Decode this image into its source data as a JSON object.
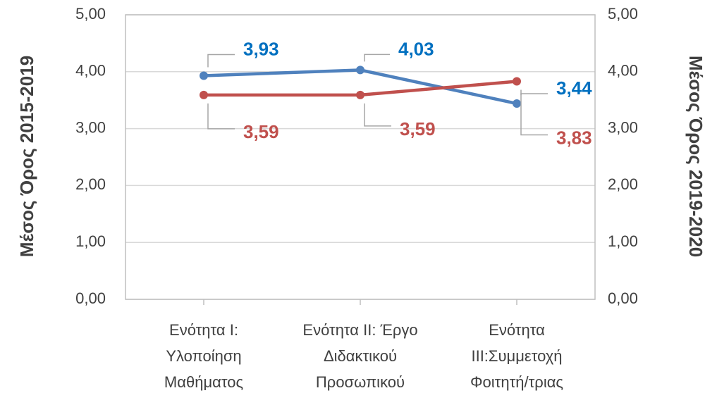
{
  "chart_data": {
    "type": "line",
    "y_label": "Μέσος Όρος 2015-2019",
    "y2_label": "Μέσος Όρος 2019-2020",
    "categories": [
      "Ενότητα Ι: Υλοποίηση Μαθήματος",
      "Ενότητα ΙΙ: Έργο Διδακτικού Προσωπικού",
      "Ενότητα ΙΙΙ:Συμμετοχή Φοιτητή/τριας"
    ],
    "series": [
      {
        "color": "#4f81bd",
        "label_color": "#0070c0",
        "values": [
          3.93,
          4.03,
          3.44
        ],
        "value_labels": [
          "3,93",
          "4,03",
          "3,44"
        ]
      },
      {
        "color": "#c0504d",
        "label_color": "#c0504d",
        "axis": "y2",
        "values": [
          3.59,
          3.59,
          3.83
        ],
        "value_labels": [
          "3,59",
          "3,59",
          "3,83"
        ]
      }
    ],
    "ylim": [
      0,
      5
    ],
    "yticks": [
      {
        "value": 0,
        "label": "0,00"
      },
      {
        "value": 1,
        "label": "1,00"
      },
      {
        "value": 2,
        "label": "2,00"
      },
      {
        "value": 3,
        "label": "3,00"
      },
      {
        "value": 4,
        "label": "4,00"
      },
      {
        "value": 5,
        "label": "5,00"
      }
    ],
    "y2lim": [
      0,
      5
    ],
    "y2ticks": [
      {
        "value": 0,
        "label": "0,00"
      },
      {
        "value": 1,
        "label": "1,00"
      },
      {
        "value": 2,
        "label": "2,00"
      },
      {
        "value": 3,
        "label": "3,00"
      },
      {
        "value": 4,
        "label": "4,00"
      },
      {
        "value": 5,
        "label": "5,00"
      }
    ],
    "grid": true
  }
}
